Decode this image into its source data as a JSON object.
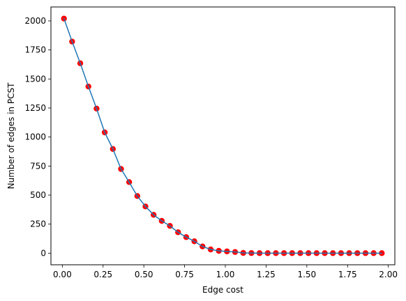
{
  "chart_data": {
    "type": "line",
    "title": "",
    "xlabel": "Edge cost",
    "ylabel": "Number of edges in PCST",
    "xlim": [
      -0.07,
      2.04
    ],
    "ylim": [
      -100,
      2120
    ],
    "xticks": [
      0.0,
      0.25,
      0.5,
      0.75,
      1.0,
      1.25,
      1.5,
      1.75,
      2.0
    ],
    "xtick_labels": [
      "0.00",
      "0.25",
      "0.50",
      "0.75",
      "1.00",
      "1.25",
      "1.50",
      "1.75",
      "2.00"
    ],
    "yticks": [
      0,
      250,
      500,
      750,
      1000,
      1250,
      1500,
      1750,
      2000
    ],
    "ytick_labels": [
      "0",
      "250",
      "500",
      "750",
      "1000",
      "1250",
      "1500",
      "1750",
      "2000"
    ],
    "grid": false,
    "line_color": "#1f77b4",
    "marker_color": "#ff0000",
    "x": [
      0.01,
      0.06,
      0.11,
      0.16,
      0.21,
      0.26,
      0.31,
      0.36,
      0.41,
      0.46,
      0.51,
      0.56,
      0.61,
      0.66,
      0.71,
      0.76,
      0.81,
      0.86,
      0.91,
      0.96,
      1.01,
      1.06,
      1.11,
      1.16,
      1.21,
      1.26,
      1.31,
      1.36,
      1.41,
      1.46,
      1.51,
      1.56,
      1.61,
      1.66,
      1.71,
      1.76,
      1.81,
      1.86,
      1.91,
      1.96
    ],
    "y": [
      2020,
      1822,
      1635,
      1435,
      1245,
      1040,
      897,
      725,
      612,
      492,
      402,
      330,
      278,
      235,
      180,
      138,
      102,
      58,
      32,
      20,
      15,
      10,
      2,
      1,
      0,
      0,
      0,
      0,
      0,
      0,
      0,
      0,
      0,
      0,
      0,
      0,
      0,
      0,
      0,
      0
    ]
  }
}
